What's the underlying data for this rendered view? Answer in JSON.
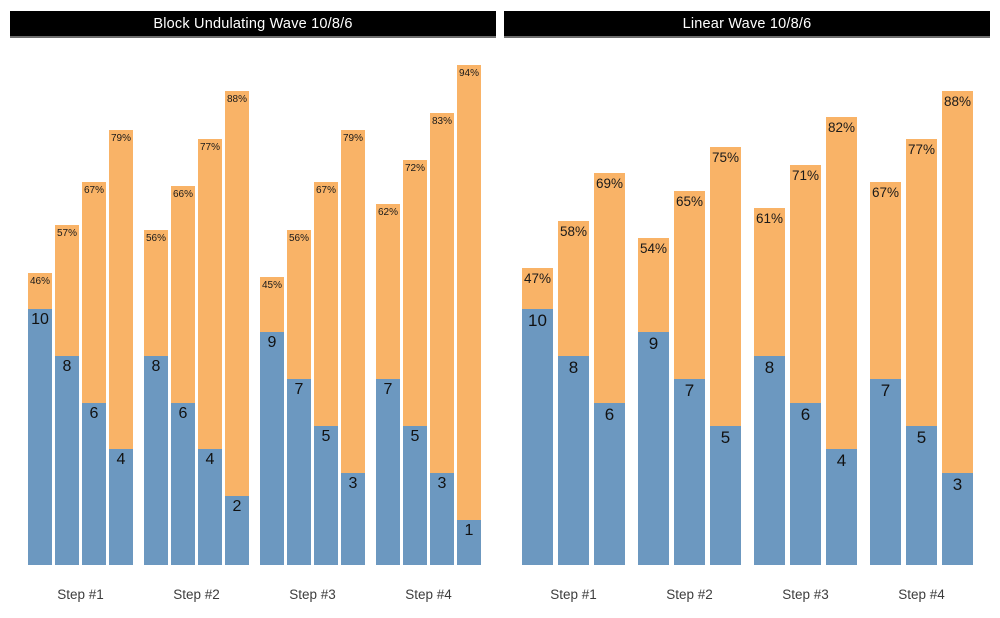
{
  "colors": {
    "bar_blue": "#6C98C0",
    "bar_orange": "#F9B367",
    "title_bg": "#000000",
    "title_fg": "#FFFFFF",
    "axis_label": "#3d3d3d"
  },
  "chart_data": [
    {
      "type": "bar",
      "stacked": true,
      "title": "Block Undulating Wave 10/8/6",
      "grid": false,
      "legend": "none",
      "categories": [
        "Step #1",
        "Step #2",
        "Step #3",
        "Step #4"
      ],
      "value_semantics": "blue segment = reps, bar top label = intensity percent",
      "groups": [
        {
          "label": "Step #1",
          "bars": [
            {
              "reps": 10,
              "pct": 46
            },
            {
              "reps": 8,
              "pct": 57
            },
            {
              "reps": 6,
              "pct": 67
            },
            {
              "reps": 4,
              "pct": 79
            }
          ]
        },
        {
          "label": "Step #2",
          "bars": [
            {
              "reps": 8,
              "pct": 56
            },
            {
              "reps": 6,
              "pct": 66
            },
            {
              "reps": 4,
              "pct": 77
            },
            {
              "reps": 2,
              "pct": 88
            }
          ]
        },
        {
          "label": "Step #3",
          "bars": [
            {
              "reps": 9,
              "pct": 45
            },
            {
              "reps": 7,
              "pct": 56
            },
            {
              "reps": 5,
              "pct": 67
            },
            {
              "reps": 3,
              "pct": 79
            }
          ]
        },
        {
          "label": "Step #4",
          "bars": [
            {
              "reps": 7,
              "pct": 62
            },
            {
              "reps": 5,
              "pct": 72
            },
            {
              "reps": 3,
              "pct": 83
            },
            {
              "reps": 1,
              "pct": 94
            }
          ]
        }
      ]
    },
    {
      "type": "bar",
      "stacked": true,
      "title": "Linear Wave 10/8/6",
      "grid": false,
      "legend": "none",
      "categories": [
        "Step #1",
        "Step #2",
        "Step #3",
        "Step #4"
      ],
      "value_semantics": "blue segment = reps, bar top label = intensity percent",
      "groups": [
        {
          "label": "Step #1",
          "bars": [
            {
              "reps": 10,
              "pct": 47
            },
            {
              "reps": 8,
              "pct": 58
            },
            {
              "reps": 6,
              "pct": 69
            }
          ]
        },
        {
          "label": "Step #2",
          "bars": [
            {
              "reps": 9,
              "pct": 54
            },
            {
              "reps": 7,
              "pct": 65
            },
            {
              "reps": 5,
              "pct": 75
            }
          ]
        },
        {
          "label": "Step #3",
          "bars": [
            {
              "reps": 8,
              "pct": 61
            },
            {
              "reps": 6,
              "pct": 71
            },
            {
              "reps": 4,
              "pct": 82
            }
          ]
        },
        {
          "label": "Step #4",
          "bars": [
            {
              "reps": 7,
              "pct": 67
            },
            {
              "reps": 5,
              "pct": 77
            },
            {
              "reps": 3,
              "pct": 88
            }
          ]
        }
      ]
    }
  ]
}
